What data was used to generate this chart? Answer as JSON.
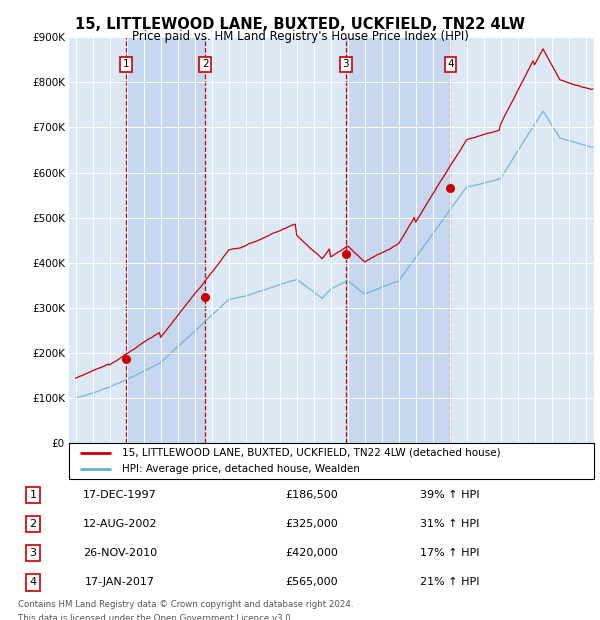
{
  "title": "15, LITTLEWOOD LANE, BUXTED, UCKFIELD, TN22 4LW",
  "subtitle": "Price paid vs. HM Land Registry's House Price Index (HPI)",
  "bg_color": "#dce9f5",
  "col_shade_color": "#c5d8ef",
  "hpi_color": "#6baed6",
  "price_color": "#cc0000",
  "ylim": [
    0,
    900000
  ],
  "yticks": [
    0,
    100000,
    200000,
    300000,
    400000,
    500000,
    600000,
    700000,
    800000,
    900000
  ],
  "ytick_labels": [
    "£0",
    "£100K",
    "£200K",
    "£300K",
    "£400K",
    "£500K",
    "£600K",
    "£700K",
    "£800K",
    "£900K"
  ],
  "xlim_start": 1994.6,
  "xlim_end": 2025.5,
  "transactions": [
    {
      "label": "1",
      "date": "17-DEC-1997",
      "year": 1997.96,
      "price": 186500,
      "pct": "39%",
      "dir": "↑"
    },
    {
      "label": "2",
      "date": "12-AUG-2002",
      "year": 2002.62,
      "price": 325000,
      "pct": "31%",
      "dir": "↑"
    },
    {
      "label": "3",
      "date": "26-NOV-2010",
      "year": 2010.9,
      "price": 420000,
      "pct": "17%",
      "dir": "↑"
    },
    {
      "label": "4",
      "date": "17-JAN-2017",
      "year": 2017.05,
      "price": 565000,
      "pct": "21%",
      "dir": "↑"
    }
  ],
  "legend_line1": "15, LITTLEWOOD LANE, BUXTED, UCKFIELD, TN22 4LW (detached house)",
  "legend_line2": "HPI: Average price, detached house, Wealden",
  "footer1": "Contains HM Land Registry data © Crown copyright and database right 2024.",
  "footer2": "This data is licensed under the Open Government Licence v3.0.",
  "table_rows": [
    [
      "1",
      "17-DEC-1997",
      "£186,500",
      "39% ↑ HPI"
    ],
    [
      "2",
      "12-AUG-2002",
      "£325,000",
      "31% ↑ HPI"
    ],
    [
      "3",
      "26-NOV-2010",
      "£420,000",
      "17% ↑ HPI"
    ],
    [
      "4",
      "17-JAN-2017",
      "£565,000",
      "21% ↑ HPI"
    ]
  ]
}
